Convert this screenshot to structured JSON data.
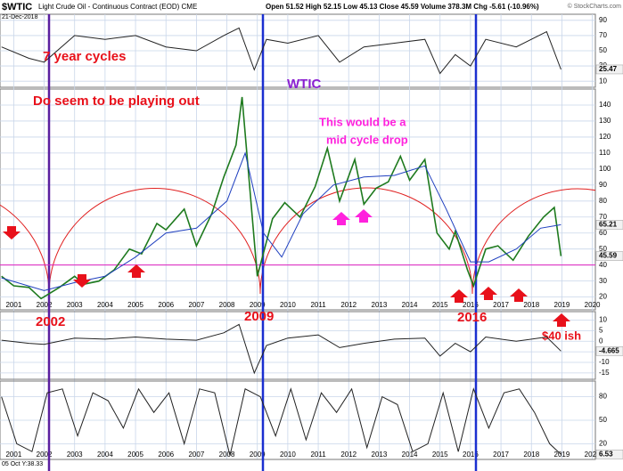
{
  "header": {
    "symbol": "$WTIC",
    "name": "Light Crude Oil - Continuous Contract (EOD) CME",
    "date": "21-Dec-2018",
    "quote": "Open 51.52 High 52.15 Low 45.13 Close 45.59 Volume 378.3M Chg -5.61 (-10.96%)",
    "copyright": "© StockCharts.com",
    "cursor": "05 Oct Y:38.33"
  },
  "chart_data": [
    {
      "type": "line",
      "xlim": [
        2000.55,
        2020.1
      ],
      "ylim": [
        2,
        98
      ],
      "yticks": [
        10,
        30,
        50,
        70,
        90
      ],
      "right_markers": [
        25.47
      ],
      "series": [
        {
          "color": "#222222",
          "x": [
            2000.6,
            2001.5,
            2002.0,
            2003.0,
            2004.0,
            2005.0,
            2006.0,
            2007.0,
            2007.9,
            2008.4,
            2008.9,
            2009.3,
            2010.0,
            2011.0,
            2011.7,
            2012.5,
            2013.5,
            2014.5,
            2015.0,
            2015.5,
            2016.0,
            2016.5,
            2017.5,
            2018.5,
            2018.97
          ],
          "values": [
            55,
            40,
            35,
            70,
            65,
            70,
            55,
            50,
            70,
            80,
            25,
            65,
            60,
            70,
            35,
            55,
            60,
            65,
            20,
            45,
            30,
            65,
            55,
            75,
            25.47
          ]
        }
      ]
    },
    {
      "type": "line",
      "xlim": [
        2000.55,
        2020.1
      ],
      "ylim": [
        12,
        150
      ],
      "yticks": [
        20,
        30,
        40,
        50,
        60,
        70,
        80,
        90,
        100,
        110,
        120,
        130,
        140
      ],
      "xticks": [
        2001,
        2002,
        2003,
        2004,
        2005,
        2006,
        2007,
        2008,
        2009,
        2010,
        2011,
        2012,
        2013,
        2014,
        2015,
        2016,
        2017,
        2018,
        2019,
        2020
      ],
      "right_markers": [
        65.21,
        45.59
      ],
      "reference_line": 40,
      "annotations": [
        "7 year cycles",
        "Do seem to be playing out",
        "WTIC",
        "This would be a",
        "mid cycle drop",
        "$40 ish",
        "2002",
        "2009",
        "2016"
      ],
      "series": [
        {
          "color": "#1e7a1e",
          "x": [
            2000.6,
            2001.0,
            2001.5,
            2001.9,
            2002.5,
            2003.0,
            2003.3,
            2003.8,
            2004.3,
            2004.8,
            2005.2,
            2005.7,
            2006.0,
            2006.6,
            2007.0,
            2007.5,
            2007.9,
            2008.3,
            2008.5,
            2008.9,
            2009.0,
            2009.5,
            2009.9,
            2010.4,
            2010.9,
            2011.3,
            2011.7,
            2012.2,
            2012.5,
            2012.9,
            2013.3,
            2013.7,
            2014.0,
            2014.5,
            2014.9,
            2015.3,
            2015.5,
            2015.9,
            2016.1,
            2016.5,
            2016.9,
            2017.4,
            2017.9,
            2018.4,
            2018.75,
            2018.97
          ],
          "values": [
            33,
            27,
            26,
            19,
            26,
            33,
            28,
            30,
            37,
            50,
            47,
            66,
            62,
            75,
            52,
            72,
            95,
            115,
            145,
            55,
            33,
            69,
            79,
            70,
            89,
            113,
            80,
            106,
            78,
            88,
            92,
            108,
            93,
            106,
            60,
            50,
            61,
            37,
            27,
            50,
            52,
            43,
            58,
            70,
            76,
            45.59
          ]
        },
        {
          "color": "#1f3fbf",
          "x": [
            2000.6,
            2002.0,
            2003.0,
            2004.0,
            2005.0,
            2006.0,
            2007.0,
            2008.0,
            2008.6,
            2009.2,
            2009.8,
            2010.5,
            2011.5,
            2012.5,
            2013.5,
            2014.5,
            2015.2,
            2016.0,
            2016.6,
            2017.5,
            2018.3,
            2018.97
          ],
          "values": [
            32,
            24,
            29,
            33,
            45,
            60,
            63,
            80,
            110,
            60,
            45,
            72,
            90,
            95,
            96,
            102,
            75,
            42,
            42,
            50,
            63,
            65.21
          ]
        }
      ]
    },
    {
      "type": "line",
      "xlim": [
        2000.55,
        2020.1
      ],
      "ylim": [
        -18,
        14
      ],
      "yticks": [
        -15,
        -10,
        -5,
        0,
        5,
        10
      ],
      "right_markers": [
        -4.665
      ],
      "series": [
        {
          "color": "#222222",
          "x": [
            2000.6,
            2001.5,
            2002.0,
            2003.0,
            2004.0,
            2005.0,
            2006.0,
            2007.0,
            2007.9,
            2008.4,
            2008.9,
            2009.3,
            2010.0,
            2011.0,
            2011.7,
            2012.5,
            2013.5,
            2014.5,
            2015.0,
            2015.5,
            2016.0,
            2016.5,
            2017.5,
            2018.5,
            2018.97
          ],
          "values": [
            0.5,
            -1,
            -1.5,
            1.5,
            1,
            2,
            1,
            0.5,
            4,
            8,
            -15,
            -2,
            1.5,
            3,
            -3,
            -1,
            1,
            1.5,
            -7,
            -1,
            -5,
            2,
            0,
            2,
            -4.665
          ]
        }
      ]
    },
    {
      "type": "line",
      "xlim": [
        2000.55,
        2020.1
      ],
      "ylim": [
        0,
        100
      ],
      "yticks": [
        20,
        50,
        80
      ],
      "xticks": [
        2001,
        2002,
        2003,
        2004,
        2005,
        2006,
        2007,
        2008,
        2009,
        2010,
        2011,
        2012,
        2013,
        2014,
        2015,
        2016,
        2017,
        2018,
        2019,
        2020
      ],
      "right_markers": [
        6.53
      ],
      "series": [
        {
          "color": "#222222",
          "x": [
            2000.6,
            2001.1,
            2001.6,
            2002.1,
            2002.6,
            2003.1,
            2003.6,
            2004.1,
            2004.6,
            2005.1,
            2005.6,
            2006.1,
            2006.6,
            2007.1,
            2007.6,
            2008.1,
            2008.6,
            2009.1,
            2009.6,
            2010.1,
            2010.6,
            2011.1,
            2011.6,
            2012.1,
            2012.6,
            2013.1,
            2013.6,
            2014.1,
            2014.6,
            2015.1,
            2015.6,
            2016.1,
            2016.6,
            2017.1,
            2017.6,
            2018.1,
            2018.6,
            2018.97
          ],
          "values": [
            80,
            20,
            10,
            85,
            90,
            30,
            85,
            75,
            40,
            90,
            60,
            85,
            20,
            90,
            85,
            5,
            90,
            80,
            30,
            90,
            25,
            85,
            60,
            90,
            15,
            80,
            70,
            10,
            20,
            85,
            10,
            90,
            40,
            85,
            90,
            60,
            20,
            6.53
          ]
        }
      ]
    }
  ]
}
